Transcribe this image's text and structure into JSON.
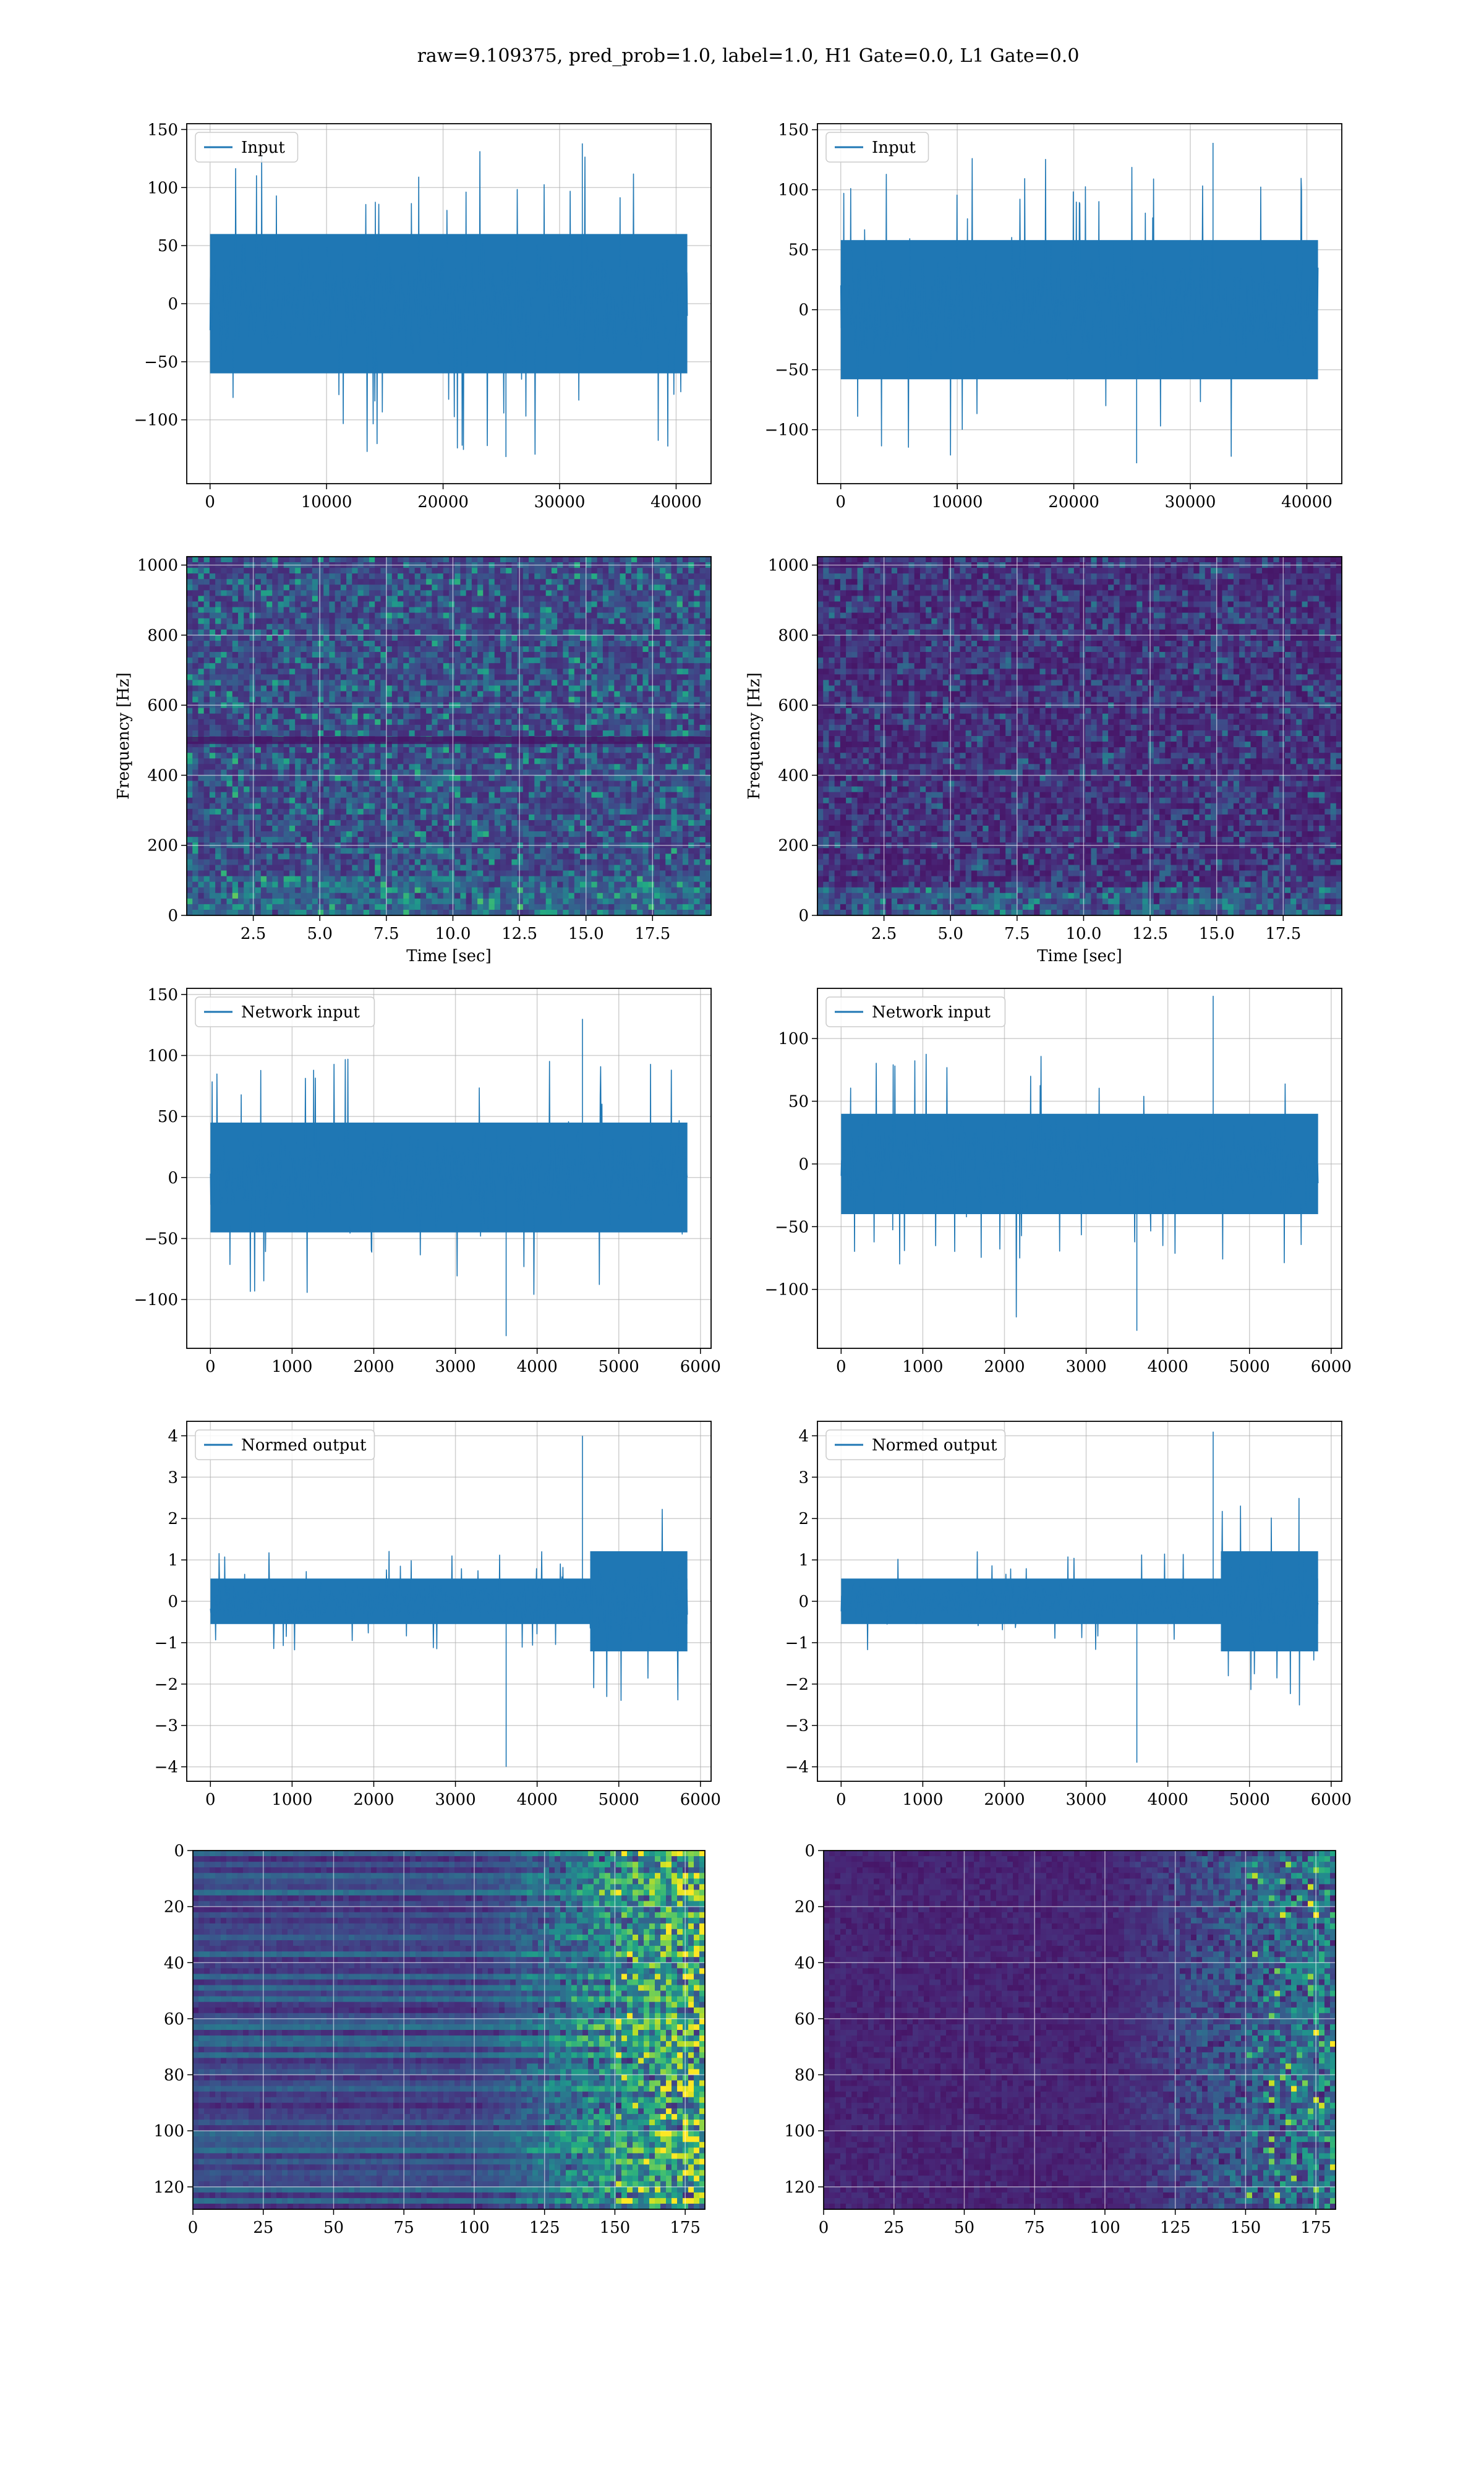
{
  "suptitle": "raw=9.109375, pred_prob=1.0, label=1.0, H1 Gate=0.0, L1 Gate=0.0",
  "colors": {
    "line": "#1f77b4",
    "grid": "#b0b0b0",
    "viridis": [
      "#440154",
      "#482475",
      "#414487",
      "#355f8d",
      "#2a788e",
      "#21908d",
      "#22a884",
      "#44bf70",
      "#7ad151",
      "#bddf26",
      "#fde725"
    ]
  },
  "chart_data": [
    {
      "id": "input-h1",
      "type": "line",
      "series": [
        {
          "name": "Input"
        }
      ],
      "x": {
        "range": [
          -2000,
          43000
        ],
        "ticks": [
          0,
          10000,
          20000,
          30000,
          40000
        ],
        "data_range": [
          0,
          40960
        ]
      },
      "y": {
        "range": [
          -155,
          155
        ],
        "ticks": [
          -100,
          -50,
          0,
          50,
          100,
          150
        ]
      },
      "envelope": {
        "core": 60,
        "peak_max": 138,
        "peak_min": -132
      },
      "legend": "top-left",
      "grid": true
    },
    {
      "id": "input-l1",
      "type": "line",
      "series": [
        {
          "name": "Input"
        }
      ],
      "x": {
        "range": [
          -2000,
          43000
        ],
        "ticks": [
          0,
          10000,
          20000,
          30000,
          40000
        ],
        "data_range": [
          0,
          40960
        ]
      },
      "y": {
        "range": [
          -145,
          155
        ],
        "ticks": [
          -100,
          -50,
          0,
          50,
          100,
          150
        ]
      },
      "envelope": {
        "core": 58,
        "peak_max": 139,
        "peak_min": -128
      },
      "legend": "top-left",
      "grid": true
    },
    {
      "id": "spec-h1",
      "type": "heatmap",
      "xlabel": "Time [sec]",
      "ylabel": "Frequency [Hz]",
      "x": {
        "range": [
          0,
          19.7
        ],
        "ticks": [
          2.5,
          5.0,
          7.5,
          10.0,
          12.5,
          15.0,
          17.5
        ]
      },
      "y": {
        "range": [
          0,
          1024
        ],
        "ticks": [
          0,
          200,
          400,
          600,
          800,
          1000
        ]
      },
      "grid": true
    },
    {
      "id": "spec-l1",
      "type": "heatmap",
      "xlabel": "Time [sec]",
      "ylabel": "Frequency [Hz]",
      "x": {
        "range": [
          0,
          19.7
        ],
        "ticks": [
          2.5,
          5.0,
          7.5,
          10.0,
          12.5,
          15.0,
          17.5
        ]
      },
      "y": {
        "range": [
          0,
          1024
        ],
        "ticks": [
          0,
          200,
          400,
          600,
          800,
          1000
        ]
      },
      "grid": true
    },
    {
      "id": "net-h1",
      "type": "line",
      "series": [
        {
          "name": "Network input"
        }
      ],
      "x": {
        "range": [
          -290,
          6130
        ],
        "ticks": [
          0,
          1000,
          2000,
          3000,
          4000,
          5000,
          6000
        ],
        "data_range": [
          0,
          5840
        ]
      },
      "y": {
        "range": [
          -140,
          155
        ],
        "ticks": [
          -100,
          -50,
          0,
          50,
          100,
          150
        ]
      },
      "envelope": {
        "core": 45,
        "peak_max": 130,
        "peak_min": -130
      },
      "legend": "top-left",
      "grid": true
    },
    {
      "id": "net-l1",
      "type": "line",
      "series": [
        {
          "name": "Network input"
        }
      ],
      "x": {
        "range": [
          -290,
          6130
        ],
        "ticks": [
          0,
          1000,
          2000,
          3000,
          4000,
          5000,
          6000
        ],
        "data_range": [
          0,
          5840
        ]
      },
      "y": {
        "range": [
          -147,
          140
        ],
        "ticks": [
          -100,
          -50,
          0,
          50,
          100
        ]
      },
      "envelope": {
        "core": 40,
        "peak_max": 134,
        "peak_min": -133
      },
      "legend": "top-left",
      "grid": true
    },
    {
      "id": "norm-h1",
      "type": "line",
      "series": [
        {
          "name": "Normed output"
        }
      ],
      "x": {
        "range": [
          -290,
          6130
        ],
        "ticks": [
          0,
          1000,
          2000,
          3000,
          4000,
          5000,
          6000
        ],
        "data_range": [
          0,
          5840
        ]
      },
      "y": {
        "range": [
          -4.35,
          4.35
        ],
        "ticks": [
          -4,
          -3,
          -2,
          -1,
          0,
          1,
          2,
          3,
          4
        ]
      },
      "envelope": {
        "core": 0.55,
        "peak_max": 4.0,
        "peak_min": -4.0
      },
      "legend": "top-left",
      "grid": true
    },
    {
      "id": "norm-l1",
      "type": "line",
      "series": [
        {
          "name": "Normed output"
        }
      ],
      "x": {
        "range": [
          -290,
          6130
        ],
        "ticks": [
          0,
          1000,
          2000,
          3000,
          4000,
          5000,
          6000
        ],
        "data_range": [
          0,
          5840
        ]
      },
      "y": {
        "range": [
          -4.35,
          4.35
        ],
        "ticks": [
          -4,
          -3,
          -2,
          -1,
          0,
          1,
          2,
          3,
          4
        ]
      },
      "envelope": {
        "core": 0.55,
        "peak_max": 4.1,
        "peak_min": -3.9
      },
      "legend": "top-left",
      "grid": true
    },
    {
      "id": "feat-h1",
      "type": "heatmap",
      "x": {
        "range": [
          0,
          182
        ],
        "ticks": [
          0,
          25,
          50,
          75,
          100,
          125,
          150,
          175
        ]
      },
      "y": {
        "range": [
          128,
          0
        ],
        "ticks": [
          0,
          20,
          40,
          60,
          80,
          100,
          120
        ]
      },
      "grid": true
    },
    {
      "id": "feat-l1",
      "type": "heatmap",
      "x": {
        "range": [
          0,
          182
        ],
        "ticks": [
          0,
          25,
          50,
          75,
          100,
          125,
          150,
          175
        ]
      },
      "y": {
        "range": [
          128,
          0
        ],
        "ticks": [
          0,
          20,
          40,
          60,
          80,
          100,
          120
        ]
      },
      "grid": true
    }
  ]
}
